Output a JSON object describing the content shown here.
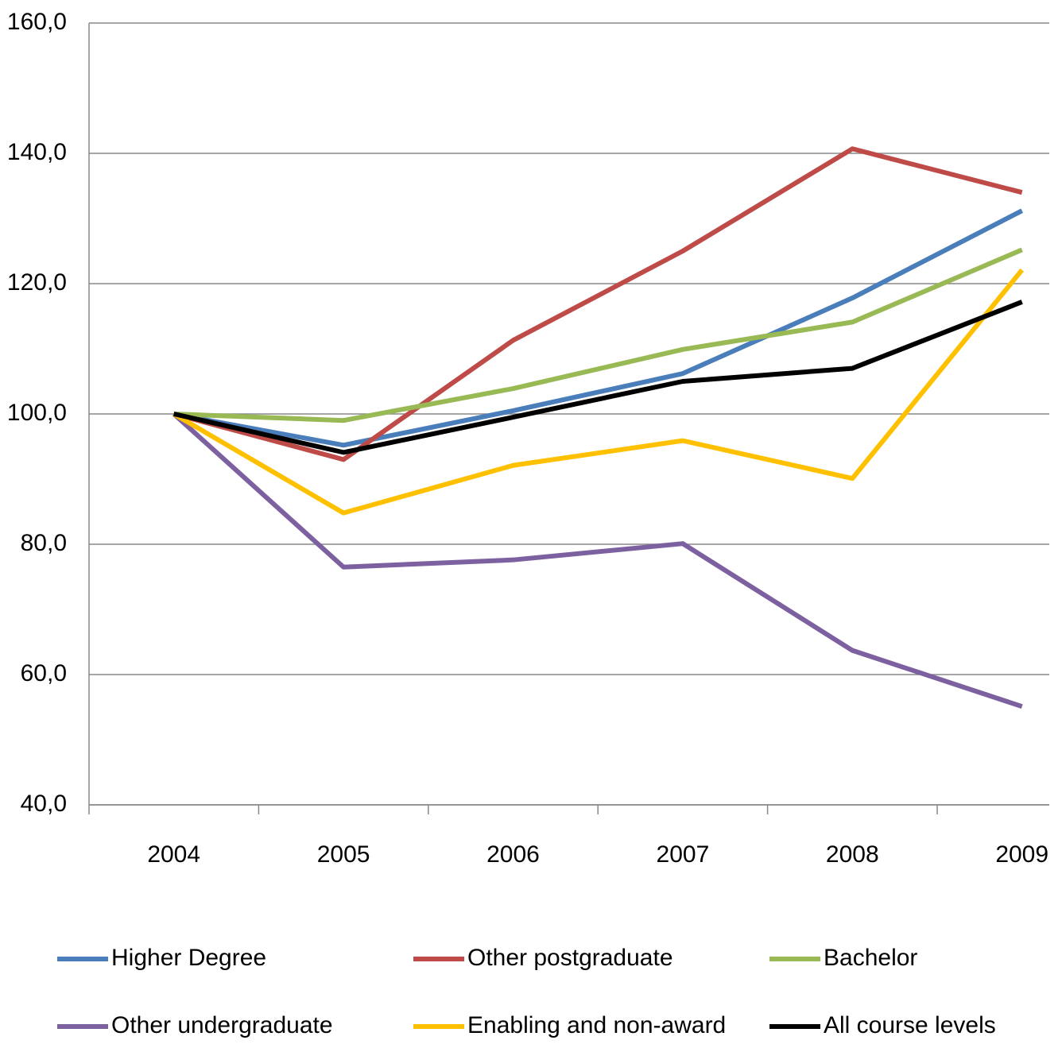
{
  "chart_data": {
    "type": "line",
    "categories": [
      "2004",
      "2005",
      "2006",
      "2007",
      "2008",
      "2009"
    ],
    "ylim": [
      40,
      160
    ],
    "yticks": [
      {
        "value": 40,
        "label": "40,0"
      },
      {
        "value": 60,
        "label": "60,0"
      },
      {
        "value": 80,
        "label": "80,0"
      },
      {
        "value": 100,
        "label": "100,0"
      },
      {
        "value": 120,
        "label": "120,0"
      },
      {
        "value": 140,
        "label": "140,0"
      },
      {
        "value": 160,
        "label": "160,0"
      }
    ],
    "grid": true,
    "legend": "bottom",
    "series": [
      {
        "name": "Higher Degree",
        "color": "#4a7ebb",
        "values": [
          100,
          95.2,
          100.5,
          106.2,
          117.8,
          131.2
        ]
      },
      {
        "name": "Other postgraduate",
        "color": "#be4b48",
        "values": [
          100,
          93,
          111.3,
          125,
          140.7,
          134
        ]
      },
      {
        "name": "Bachelor",
        "color": "#98b954",
        "values": [
          100,
          99,
          103.9,
          109.9,
          114.1,
          125.2
        ]
      },
      {
        "name": "Other undergraduate",
        "color": "#7d60a0",
        "values": [
          100,
          76.5,
          77.6,
          80.1,
          63.7,
          55.1
        ]
      },
      {
        "name": "Enabling and non-award",
        "color": "#ffc000",
        "values": [
          100,
          84.8,
          92.1,
          95.9,
          90.1,
          122.1
        ]
      },
      {
        "name": "All course levels",
        "color": "#000000",
        "values": [
          100,
          94.1,
          99.5,
          105,
          107,
          117.2
        ]
      }
    ]
  }
}
